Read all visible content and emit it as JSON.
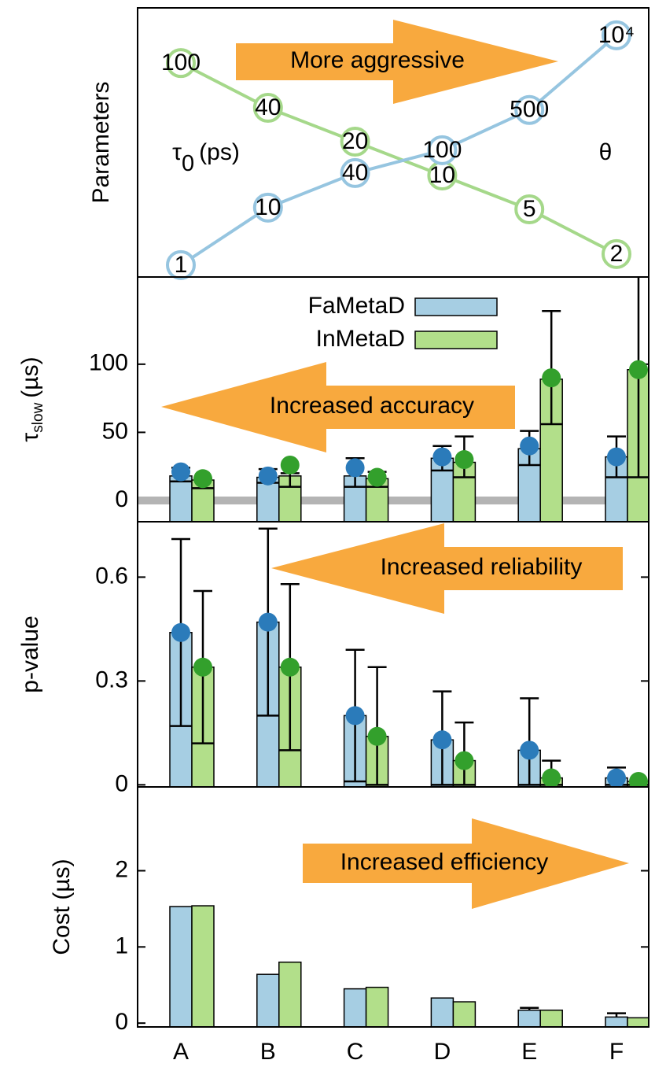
{
  "chart_data": [
    {
      "type": "line",
      "ylabel": "Parameters",
      "annotation": "More aggressive",
      "yscale": "log",
      "ylim": [
        1.25,
        310
      ],
      "y2lim": [
        0.62,
        30000
      ],
      "series": [
        {
          "name": {
            "symbol": "τ",
            "sub": "0",
            "unit": "(ps)"
          },
          "color": "#a5d88a",
          "values": [
            100,
            40,
            20,
            10,
            5,
            2
          ]
        },
        {
          "name": "θ",
          "color": "#96c5e0",
          "axis": "y2",
          "values": [
            1,
            10,
            40,
            100,
            500,
            10000
          ],
          "value_labels": [
            "1",
            "10",
            "40",
            "100",
            "500",
            "10⁴"
          ]
        }
      ]
    },
    {
      "type": "bar",
      "ylabel": {
        "symbol": "τ",
        "sub": "slow",
        "unit": "(µs)"
      },
      "annotation": "Increased accuracy",
      "ylim": [
        -15.6,
        164
      ],
      "yticks": [
        0,
        50,
        100
      ],
      "hline": 0,
      "hline_color": "#b4b4b4",
      "series": [
        {
          "name": "FaMetaD",
          "color": "#a6cee3",
          "point_color": "#2b7bba",
          "values": [
            18,
            17,
            18,
            31,
            38,
            32
          ],
          "lower": [
            14,
            13,
            10,
            22,
            26,
            17
          ],
          "upper": [
            24,
            23,
            31,
            40,
            51,
            47
          ],
          "points": [
            21,
            18,
            24,
            32,
            40,
            32
          ]
        },
        {
          "name": "InMetaD",
          "color": "#b2df8a",
          "point_color": "#33a02c",
          "values": [
            15,
            18,
            16,
            28,
            89,
            96
          ],
          "lower": [
            9,
            10,
            10,
            17,
            56,
            17
          ],
          "upper": [
            16,
            20,
            21,
            47,
            139,
            175
          ],
          "points": [
            16,
            26,
            17,
            30,
            90,
            96
          ]
        }
      ]
    },
    {
      "type": "bar",
      "ylabel": "p-value",
      "annotation": "Increased reliability",
      "ylim": [
        -0.006,
        0.76
      ],
      "yticks": [
        0,
        0.3,
        0.6
      ],
      "series": [
        {
          "color": "#a6cee3",
          "point_color": "#2b7bba",
          "values": [
            0.44,
            0.47,
            0.2,
            0.13,
            0.1,
            0.02
          ],
          "lower": [
            0.17,
            0.2,
            0.01,
            0,
            0,
            0
          ],
          "upper": [
            0.71,
            0.74,
            0.39,
            0.27,
            0.25,
            0.05
          ],
          "points": [
            0.44,
            0.47,
            0.2,
            0.13,
            0.1,
            0.02
          ]
        },
        {
          "color": "#b2df8a",
          "point_color": "#33a02c",
          "values": [
            0.34,
            0.34,
            0.14,
            0.07,
            0.02,
            0.01
          ],
          "lower": [
            0.12,
            0.1,
            0,
            0,
            0,
            0
          ],
          "upper": [
            0.56,
            0.58,
            0.34,
            0.18,
            0.07,
            0.01
          ],
          "points": [
            0.34,
            0.34,
            0.14,
            0.07,
            0.02,
            0.01
          ]
        }
      ]
    },
    {
      "type": "bar",
      "ylabel": "Cost (µs)",
      "annotation": "Increased efficiency",
      "ylim": [
        -0.05,
        3.1
      ],
      "yticks": [
        0,
        1,
        2
      ],
      "categories": [
        "A",
        "B",
        "C",
        "D",
        "E",
        "F"
      ],
      "series": [
        {
          "color": "#a6cee3",
          "values": [
            1.53,
            0.64,
            0.45,
            0.33,
            0.17,
            0.08
          ],
          "upper": [
            null,
            null,
            null,
            null,
            0.2,
            0.13
          ]
        },
        {
          "color": "#b2df8a",
          "values": [
            1.54,
            0.8,
            0.47,
            0.28,
            0.17,
            0.07
          ]
        }
      ]
    }
  ]
}
